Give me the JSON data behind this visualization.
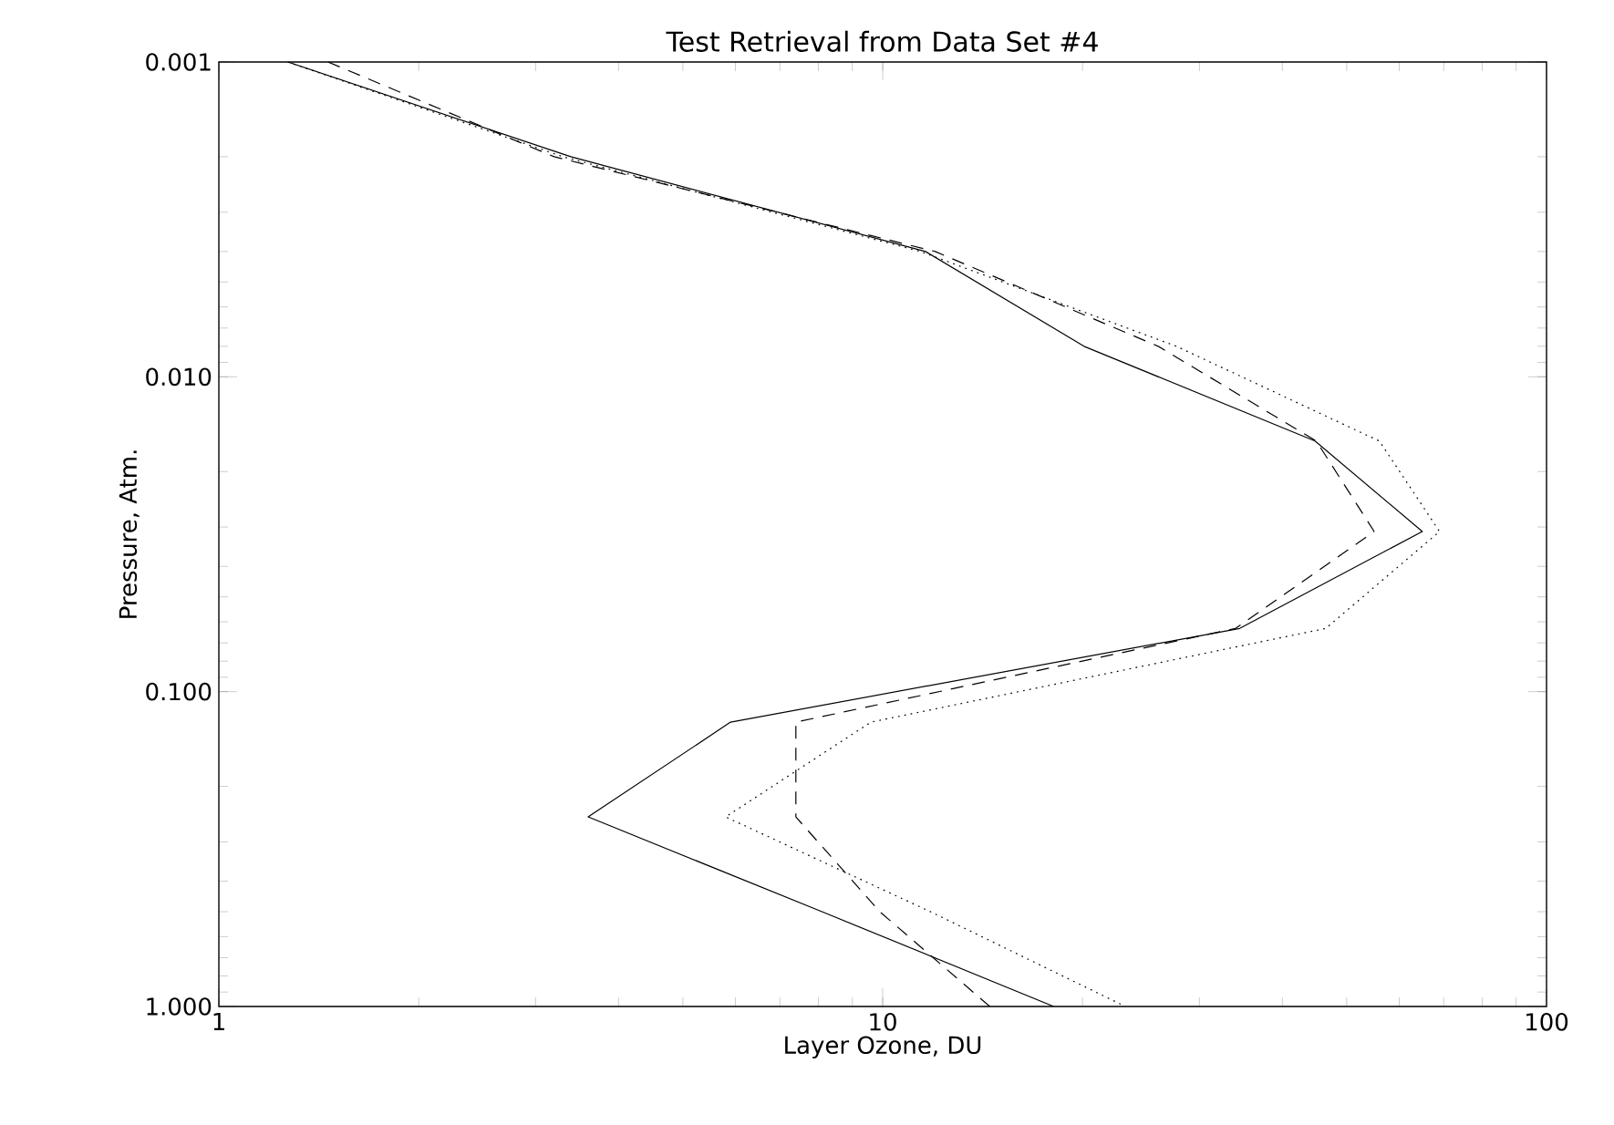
{
  "chart_data": {
    "type": "line",
    "title": "Test Retrieval from Data Set #4",
    "xlabel": "Layer Ozone, DU",
    "ylabel": "Pressure, Atm.",
    "log": "xy",
    "xlim": [
      1,
      100
    ],
    "xticks": [
      1,
      10,
      100
    ],
    "ylim": [
      1.0,
      0.001
    ],
    "yticks": [
      {
        "value": 0.001,
        "label": "0.001"
      },
      {
        "value": 0.01,
        "label": "0.010"
      },
      {
        "value": 0.1,
        "label": "0.100"
      },
      {
        "value": 1.0,
        "label": "1.000"
      }
    ],
    "grid": false,
    "marker": "none",
    "series": [
      {
        "color": "#000000",
        "line_style": "solid",
        "x": [
          1.27,
          3.39,
          11.6,
          20.1,
          44.8,
          65,
          34.5,
          5.9,
          3.6,
          8.1,
          18.1
        ],
        "values": [
          0.001,
          0.002,
          0.004,
          0.008,
          0.016,
          0.031,
          0.063,
          0.125,
          0.25,
          0.5,
          1.0
        ]
      },
      {
        "color": "#000000",
        "line_style": "dashed",
        "x": [
          1.46,
          3.2,
          12,
          26,
          45,
          55,
          34,
          7.4,
          7.4,
          9.9,
          14.5
        ],
        "values": [
          0.001,
          0.002,
          0.004,
          0.008,
          0.016,
          0.031,
          0.063,
          0.125,
          0.25,
          0.5,
          1.0
        ]
      },
      {
        "color": "#000000",
        "line_style": "dotted",
        "x": [
          1.27,
          3.3,
          11.4,
          27.7,
          56,
          69,
          46.5,
          9.6,
          5.8,
          11.8,
          23.2
        ],
        "values": [
          0.001,
          0.002,
          0.004,
          0.008,
          0.016,
          0.031,
          0.063,
          0.125,
          0.25,
          0.5,
          1.0
        ]
      }
    ]
  }
}
